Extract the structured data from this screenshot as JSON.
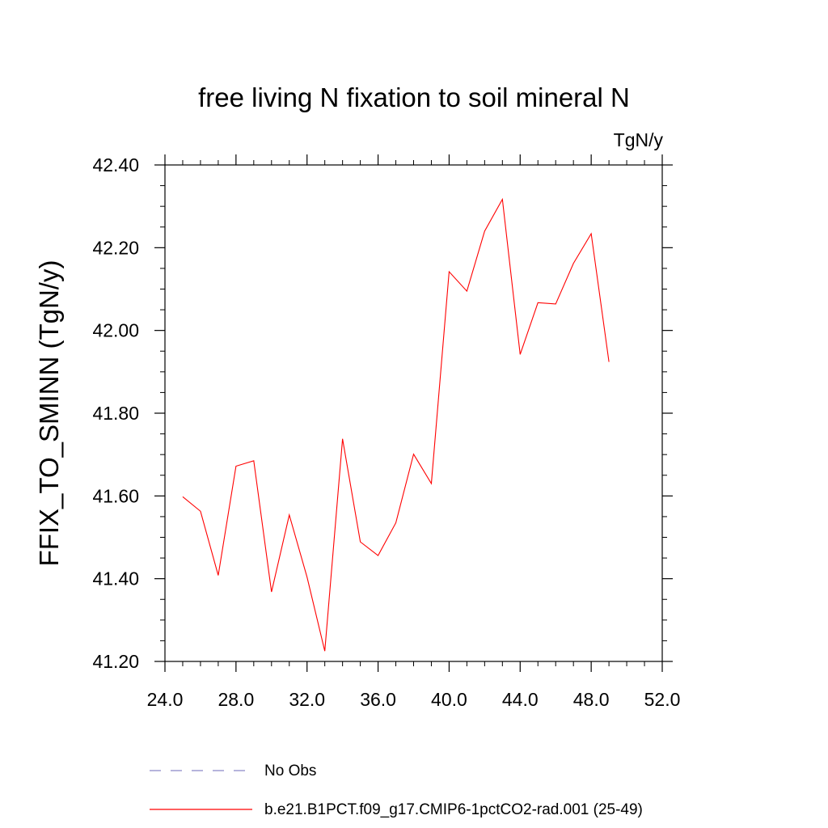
{
  "chart_data": {
    "type": "line",
    "title": "free living N fixation to soil mineral N",
    "units_label": "TgN/y",
    "ylabel": "FFIX_TO_SMINN  (TgN/y)",
    "xlabel": "",
    "xlim": [
      24.0,
      52.0
    ],
    "ylim": [
      41.2,
      42.4
    ],
    "xticks": [
      "24.0",
      "28.0",
      "32.0",
      "36.0",
      "40.0",
      "44.0",
      "48.0",
      "52.0"
    ],
    "yticks": [
      "41.20",
      "41.40",
      "41.60",
      "41.80",
      "42.00",
      "42.20",
      "42.40"
    ],
    "grid": false,
    "legend_position": "bottom",
    "series": [
      {
        "name": "b.e21.B1PCT.f09_g17.CMIP6-1pctCO2-rad.001 (25-49)",
        "color": "#ff0000",
        "dash": "solid",
        "x": [
          25,
          26,
          27,
          28,
          29,
          30,
          31,
          32,
          33,
          34,
          35,
          36,
          37,
          38,
          39,
          40,
          41,
          42,
          43,
          44,
          45,
          46,
          47,
          48,
          49
        ],
        "y": [
          41.598,
          41.563,
          41.408,
          41.672,
          41.685,
          41.368,
          41.554,
          41.404,
          41.225,
          41.738,
          41.489,
          41.456,
          41.535,
          41.701,
          41.63,
          42.142,
          42.095,
          42.24,
          42.317,
          41.942,
          42.067,
          42.064,
          42.162,
          42.234,
          41.924
        ]
      }
    ],
    "legend": [
      {
        "label": "No Obs",
        "color": "#8a86c8",
        "dash": "dashed"
      },
      {
        "label": "b.e21.B1PCT.f09_g17.CMIP6-1pctCO2-rad.001 (25-49)",
        "color": "#ff0000",
        "dash": "solid"
      }
    ]
  }
}
